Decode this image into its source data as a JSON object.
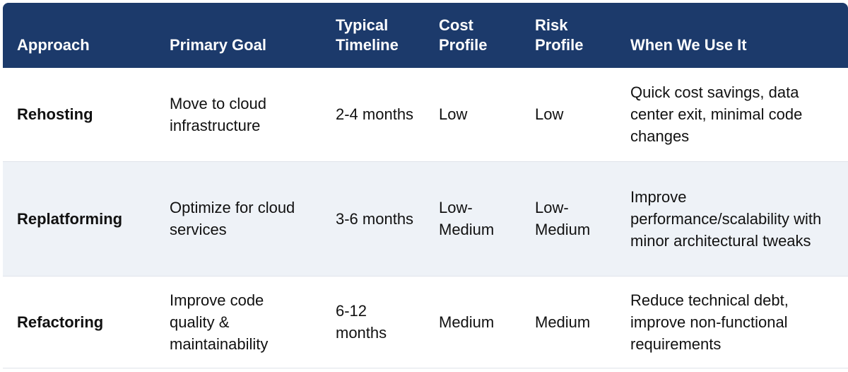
{
  "table": {
    "headers": [
      "Approach",
      "Primary Goal",
      "Typical Timeline",
      "Cost Profile",
      "Risk Profile",
      "When We Use It"
    ],
    "rows": [
      [
        "Rehosting",
        "Move to cloud infrastructure",
        "2-4 months",
        "Low",
        "Low",
        "Quick cost savings, data center exit, minimal code changes"
      ],
      [
        "Replatforming",
        "Optimize for cloud services",
        "3-6 months",
        "Low-Medium",
        "Low-Medium",
        "Improve performance/scalability with minor architectural tweaks"
      ],
      [
        "Refactoring",
        "Improve code quality & maintainability",
        "6-12 months",
        "Medium",
        "Medium",
        "Reduce technical debt, improve non-functional requirements"
      ]
    ]
  }
}
